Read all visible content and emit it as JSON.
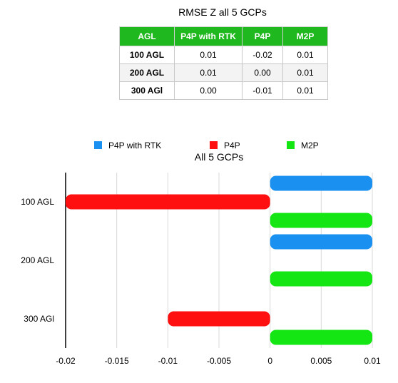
{
  "table": {
    "title": "RMSE Z all 5 GCPs",
    "headers": [
      "AGL",
      "P4P with RTK",
      "P4P",
      "M2P"
    ],
    "rows": [
      [
        "100 AGL",
        "0.01",
        "-0.02",
        "0.01"
      ],
      [
        "200 AGL",
        "0.01",
        "0.00",
        "0.01"
      ],
      [
        "300 AGl",
        "0.00",
        "-0.01",
        "0.01"
      ]
    ]
  },
  "chart_data": {
    "type": "bar",
    "orientation": "horizontal",
    "title": "All 5 GCPs",
    "categories": [
      "100 AGL",
      "200 AGL",
      "300 AGl"
    ],
    "series": [
      {
        "name": "P4P with RTK",
        "color": "#1a90f0",
        "values": [
          0.01,
          0.01,
          0.0
        ]
      },
      {
        "name": "P4P",
        "color": "#ff1010",
        "values": [
          -0.02,
          0.0,
          -0.01
        ]
      },
      {
        "name": "M2P",
        "color": "#14e614",
        "values": [
          0.01,
          0.01,
          0.01
        ]
      }
    ],
    "xlim": [
      -0.02,
      0.01
    ],
    "xticks": [
      "-0.02",
      "-0.015",
      "-0.01",
      "-0.005",
      "0",
      "0.005",
      "0.01"
    ],
    "grid": true,
    "legend": "top"
  }
}
